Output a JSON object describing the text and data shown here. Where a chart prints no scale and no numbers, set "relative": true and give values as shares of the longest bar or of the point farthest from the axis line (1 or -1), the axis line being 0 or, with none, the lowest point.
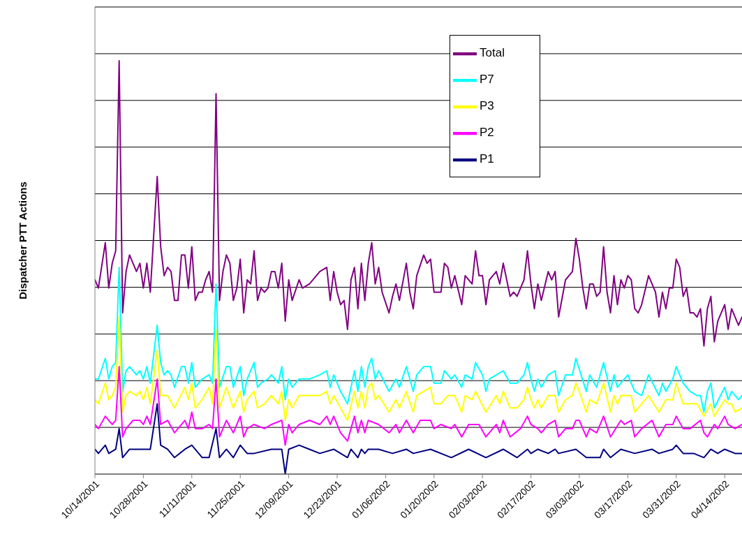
{
  "chart_data": {
    "type": "line",
    "ylabel": "Dispatcher PTT Actions",
    "relative": true,
    "grid": "y",
    "legend": "top right",
    "marker": "none",
    "line_style": "solid",
    "xlim": [
      "2001-10-14",
      "2002-04-19"
    ],
    "xticks": [
      {
        "value": "2001-10-14",
        "label": "10/14/2001"
      },
      {
        "value": "2001-10-28",
        "label": "10/28/2001"
      },
      {
        "value": "2001-11-11",
        "label": "11/11/2001"
      },
      {
        "value": "2001-11-25",
        "label": "11/25/2001"
      },
      {
        "value": "2001-12-09",
        "label": "12/09/2001"
      },
      {
        "value": "2001-12-23",
        "label": "12/23/2001"
      },
      {
        "value": "2002-01-06",
        "label": "01/06/2002"
      },
      {
        "value": "2002-01-20",
        "label": "01/20/2002"
      },
      {
        "value": "2002-02-03",
        "label": "02/03/2002"
      },
      {
        "value": "2002-02-17",
        "label": "02/17/2002"
      },
      {
        "value": "2002-03-03",
        "label": "03/03/2002"
      },
      {
        "value": "2002-03-17",
        "label": "03/17/2002"
      },
      {
        "value": "2002-03-31",
        "label": "03/31/2002"
      },
      {
        "value": "2002-04-14",
        "label": "04/14/2002"
      }
    ],
    "series": [
      {
        "name": "Total",
        "color": "#800080",
        "x": [
          "2001-10-14",
          "2001-10-15",
          "2001-10-17",
          "2001-10-18",
          "2001-10-19",
          "2001-10-20",
          "2001-10-21",
          "2001-10-22",
          "2001-10-23",
          "2001-10-24",
          "2001-10-26",
          "2001-10-27",
          "2001-10-28",
          "2001-10-29",
          "2001-10-30",
          "2001-11-01",
          "2001-11-02",
          "2001-11-03",
          "2001-11-04",
          "2001-11-05",
          "2001-11-06",
          "2001-11-07",
          "2001-11-08",
          "2001-11-09",
          "2001-11-10",
          "2001-11-11",
          "2001-11-12",
          "2001-11-13",
          "2001-11-14",
          "2001-11-15",
          "2001-11-16",
          "2001-11-17",
          "2001-11-18",
          "2001-11-19",
          "2001-11-20",
          "2001-11-21",
          "2001-11-22",
          "2001-11-23",
          "2001-11-24",
          "2001-11-25",
          "2001-11-26",
          "2001-11-27",
          "2001-11-28",
          "2001-11-29",
          "2001-11-30",
          "2001-12-01",
          "2001-12-02",
          "2001-12-03",
          "2001-12-04",
          "2001-12-05",
          "2001-12-06",
          "2001-12-07",
          "2001-12-08",
          "2001-12-09",
          "2001-12-10",
          "2001-12-12",
          "2001-12-13",
          "2001-12-15",
          "2001-12-18",
          "2001-12-20",
          "2001-12-21",
          "2001-12-22",
          "2001-12-23",
          "2001-12-24",
          "2001-12-25",
          "2001-12-26",
          "2001-12-27",
          "2001-12-28",
          "2001-12-29",
          "2001-12-30",
          "2001-12-31",
          "2002-01-01",
          "2002-01-02",
          "2002-01-03",
          "2002-01-04",
          "2002-01-05",
          "2002-01-07",
          "2002-01-08",
          "2002-01-09",
          "2002-01-10",
          "2002-01-12",
          "2002-01-13",
          "2002-01-14",
          "2002-01-15",
          "2002-01-17",
          "2002-01-18",
          "2002-01-19",
          "2002-01-20",
          "2002-01-21",
          "2002-01-22",
          "2002-01-23",
          "2002-01-24",
          "2002-01-25",
          "2002-01-26",
          "2002-01-28",
          "2002-01-29",
          "2002-01-31",
          "2002-02-01",
          "2002-02-02",
          "2002-02-03",
          "2002-02-04",
          "2002-02-05",
          "2002-02-07",
          "2002-02-08",
          "2002-02-09",
          "2002-02-11",
          "2002-02-12",
          "2002-02-13",
          "2002-02-14",
          "2002-02-15",
          "2002-02-16",
          "2002-02-17",
          "2002-02-18",
          "2002-02-19",
          "2002-02-20",
          "2002-02-22",
          "2002-02-23",
          "2002-02-24",
          "2002-02-25",
          "2002-02-27",
          "2002-03-01",
          "2002-03-02",
          "2002-03-03",
          "2002-03-04",
          "2002-03-05",
          "2002-03-06",
          "2002-03-07",
          "2002-03-08",
          "2002-03-09",
          "2002-03-10",
          "2002-03-11",
          "2002-03-12",
          "2002-03-13",
          "2002-03-14",
          "2002-03-15",
          "2002-03-16",
          "2002-03-17",
          "2002-03-18",
          "2002-03-19",
          "2002-03-20",
          "2002-03-21",
          "2002-03-23",
          "2002-03-24",
          "2002-03-25",
          "2002-03-26",
          "2002-03-27",
          "2002-03-28",
          "2002-03-29",
          "2002-03-30",
          "2002-03-31",
          "2002-04-01",
          "2002-04-02",
          "2002-04-03",
          "2002-04-04",
          "2002-04-05",
          "2002-04-06",
          "2002-04-07",
          "2002-04-08",
          "2002-04-09",
          "2002-04-10",
          "2002-04-11",
          "2002-04-12",
          "2002-04-14",
          "2002-04-15",
          "2002-04-16",
          "2002-04-17",
          "2002-04-18",
          "2002-04-19"
        ],
        "values": [
          0.47,
          0.45,
          0.56,
          0.45,
          0.51,
          0.54,
          1,
          0.39,
          0.49,
          0.53,
          0.49,
          0.51,
          0.45,
          0.51,
          0.44,
          0.72,
          0.55,
          0.48,
          0.5,
          0.49,
          0.42,
          0.42,
          0.53,
          0.53,
          0.45,
          0.55,
          0.42,
          0.44,
          0.44,
          0.47,
          0.49,
          0.44,
          0.92,
          0.42,
          0.49,
          0.53,
          0.51,
          0.42,
          0.45,
          0.52,
          0.39,
          0.47,
          0.46,
          0.54,
          0.42,
          0.45,
          0.44,
          0.45,
          0.49,
          0.49,
          0.45,
          0.51,
          0.37,
          0.47,
          0.42,
          0.47,
          0.45,
          0.46,
          0.49,
          0.5,
          0.42,
          0.49,
          0.44,
          0.41,
          0.42,
          0.35,
          0.47,
          0.5,
          0.4,
          0.51,
          0.42,
          0.51,
          0.56,
          0.46,
          0.5,
          0.44,
          0.39,
          0.43,
          0.46,
          0.42,
          0.51,
          0.44,
          0.4,
          0.48,
          0.53,
          0.51,
          0.52,
          0.44,
          0.44,
          0.44,
          0.51,
          0.5,
          0.45,
          0.48,
          0.41,
          0.48,
          0.46,
          0.54,
          0.48,
          0.48,
          0.41,
          0.47,
          0.49,
          0.46,
          0.51,
          0.43,
          0.44,
          0.43,
          0.45,
          0.47,
          0.54,
          0.46,
          0.4,
          0.46,
          0.42,
          0.49,
          0.47,
          0.49,
          0.38,
          0.47,
          0.49,
          0.57,
          0.52,
          0.45,
          0.4,
          0.46,
          0.46,
          0.43,
          0.44,
          0.55,
          0.44,
          0.39,
          0.48,
          0.41,
          0.47,
          0.45,
          0.48,
          0.47,
          0.4,
          0.39,
          0.41,
          0.48,
          0.46,
          0.44,
          0.38,
          0.44,
          0.4,
          0.45,
          0.45,
          0.52,
          0.5,
          0.43,
          0.45,
          0.39,
          0.39,
          0.38,
          0.4,
          0.31,
          0.4,
          0.43,
          0.32,
          0.37,
          0.41,
          0.35,
          0.4,
          0.38,
          0.36,
          0.38
        ]
      },
      {
        "name": "P7",
        "color": "#00ffff",
        "x": [
          "2001-10-14",
          "2001-10-15",
          "2001-10-17",
          "2001-10-18",
          "2001-10-19",
          "2001-10-20",
          "2001-10-21",
          "2001-10-22",
          "2001-10-23",
          "2001-10-24",
          "2001-10-26",
          "2001-10-27",
          "2001-10-28",
          "2001-10-29",
          "2001-10-30",
          "2001-11-01",
          "2001-11-02",
          "2001-11-03",
          "2001-11-04",
          "2001-11-05",
          "2001-11-06",
          "2001-11-08",
          "2001-11-09",
          "2001-11-10",
          "2001-11-11",
          "2001-11-12",
          "2001-11-14",
          "2001-11-16",
          "2001-11-17",
          "2001-11-18",
          "2001-11-19",
          "2001-11-21",
          "2001-11-22",
          "2001-11-23",
          "2001-11-25",
          "2001-11-26",
          "2001-11-27",
          "2001-11-29",
          "2001-11-30",
          "2001-12-01",
          "2001-12-03",
          "2001-12-04",
          "2001-12-06",
          "2001-12-07",
          "2001-12-08",
          "2001-12-09",
          "2001-12-10",
          "2001-12-12",
          "2001-12-15",
          "2001-12-18",
          "2001-12-20",
          "2001-12-21",
          "2001-12-22",
          "2001-12-24",
          "2001-12-26",
          "2001-12-28",
          "2001-12-29",
          "2001-12-30",
          "2001-12-31",
          "2002-01-01",
          "2002-01-02",
          "2002-01-03",
          "2002-01-04",
          "2002-01-07",
          "2002-01-09",
          "2002-01-10",
          "2002-01-12",
          "2002-01-14",
          "2002-01-15",
          "2002-01-17",
          "2002-01-19",
          "2002-01-20",
          "2002-01-22",
          "2002-01-23",
          "2002-01-25",
          "2002-01-26",
          "2002-01-28",
          "2002-01-29",
          "2002-01-31",
          "2002-02-01",
          "2002-02-03",
          "2002-02-04",
          "2002-02-05",
          "2002-02-07",
          "2002-02-09",
          "2002-02-11",
          "2002-02-13",
          "2002-02-15",
          "2002-02-16",
          "2002-02-17",
          "2002-02-18",
          "2002-02-19",
          "2002-02-20",
          "2002-02-22",
          "2002-02-24",
          "2002-02-25",
          "2002-02-27",
          "2002-03-01",
          "2002-03-02",
          "2002-03-05",
          "2002-03-06",
          "2002-03-08",
          "2002-03-10",
          "2002-03-12",
          "2002-03-13",
          "2002-03-14",
          "2002-03-17",
          "2002-03-19",
          "2002-03-21",
          "2002-03-23",
          "2002-03-26",
          "2002-03-27",
          "2002-03-28",
          "2002-03-30",
          "2002-03-31",
          "2002-04-02",
          "2002-04-04",
          "2002-04-06",
          "2002-04-07",
          "2002-04-08",
          "2002-04-09",
          "2002-04-10",
          "2002-04-11",
          "2002-04-14",
          "2002-04-15",
          "2002-04-16",
          "2002-04-18",
          "2002-04-19"
        ],
        "values": [
          0.23,
          0.23,
          0.28,
          0.23,
          0.26,
          0.27,
          0.5,
          0.2,
          0.25,
          0.26,
          0.24,
          0.25,
          0.23,
          0.26,
          0.22,
          0.36,
          0.27,
          0.24,
          0.25,
          0.24,
          0.21,
          0.26,
          0.26,
          0.22,
          0.27,
          0.21,
          0.23,
          0.24,
          0.22,
          0.46,
          0.21,
          0.26,
          0.26,
          0.21,
          0.26,
          0.19,
          0.23,
          0.27,
          0.21,
          0.22,
          0.23,
          0.24,
          0.22,
          0.26,
          0.18,
          0.23,
          0.21,
          0.23,
          0.23,
          0.24,
          0.25,
          0.21,
          0.24,
          0.2,
          0.17,
          0.25,
          0.2,
          0.26,
          0.21,
          0.26,
          0.28,
          0.23,
          0.25,
          0.2,
          0.23,
          0.21,
          0.26,
          0.2,
          0.24,
          0.26,
          0.26,
          0.22,
          0.22,
          0.25,
          0.23,
          0.24,
          0.21,
          0.24,
          0.23,
          0.27,
          0.24,
          0.2,
          0.23,
          0.24,
          0.25,
          0.22,
          0.22,
          0.24,
          0.27,
          0.23,
          0.2,
          0.23,
          0.21,
          0.24,
          0.25,
          0.19,
          0.24,
          0.24,
          0.28,
          0.2,
          0.24,
          0.21,
          0.27,
          0.2,
          0.24,
          0.21,
          0.24,
          0.2,
          0.19,
          0.24,
          0.19,
          0.22,
          0.2,
          0.23,
          0.26,
          0.22,
          0.2,
          0.19,
          0.19,
          0.15,
          0.2,
          0.22,
          0.16,
          0.21,
          0.18,
          0.2,
          0.18,
          0.19
        ]
      },
      {
        "name": "P3",
        "color": "#ffff00",
        "x": [
          "2001-10-14",
          "2001-10-15",
          "2001-10-17",
          "2001-10-18",
          "2001-10-19",
          "2001-10-20",
          "2001-10-21",
          "2001-10-22",
          "2001-10-23",
          "2001-10-24",
          "2001-10-26",
          "2001-10-27",
          "2001-10-28",
          "2001-10-29",
          "2001-10-30",
          "2001-11-01",
          "2001-11-02",
          "2001-11-04",
          "2001-11-06",
          "2001-11-09",
          "2001-11-10",
          "2001-11-11",
          "2001-11-12",
          "2001-11-14",
          "2001-11-16",
          "2001-11-17",
          "2001-11-18",
          "2001-11-19",
          "2001-11-21",
          "2001-11-23",
          "2001-11-25",
          "2001-11-26",
          "2001-11-27",
          "2001-11-29",
          "2001-11-30",
          "2001-12-02",
          "2001-12-04",
          "2001-12-06",
          "2001-12-07",
          "2001-12-08",
          "2001-12-09",
          "2001-12-10",
          "2001-12-12",
          "2001-12-15",
          "2001-12-18",
          "2001-12-20",
          "2001-12-21",
          "2001-12-22",
          "2001-12-24",
          "2001-12-26",
          "2001-12-28",
          "2001-12-29",
          "2001-12-30",
          "2001-12-31",
          "2002-01-01",
          "2002-01-02",
          "2002-01-03",
          "2002-01-04",
          "2002-01-07",
          "2002-01-09",
          "2002-01-10",
          "2002-01-12",
          "2002-01-14",
          "2002-01-15",
          "2002-01-17",
          "2002-01-19",
          "2002-01-20",
          "2002-01-22",
          "2002-01-24",
          "2002-01-26",
          "2002-01-28",
          "2002-01-29",
          "2002-01-31",
          "2002-02-01",
          "2002-02-04",
          "2002-02-07",
          "2002-02-08",
          "2002-02-09",
          "2002-02-11",
          "2002-02-13",
          "2002-02-15",
          "2002-02-16",
          "2002-02-17",
          "2002-02-18",
          "2002-02-19",
          "2002-02-20",
          "2002-02-22",
          "2002-02-24",
          "2002-02-25",
          "2002-02-27",
          "2002-03-01",
          "2002-03-02",
          "2002-03-03",
          "2002-03-05",
          "2002-03-06",
          "2002-03-08",
          "2002-03-10",
          "2002-03-12",
          "2002-03-13",
          "2002-03-14",
          "2002-03-15",
          "2002-03-18",
          "2002-03-19",
          "2002-03-21",
          "2002-03-23",
          "2002-03-26",
          "2002-03-28",
          "2002-03-30",
          "2002-03-31",
          "2002-04-02",
          "2002-04-04",
          "2002-04-06",
          "2002-04-08",
          "2002-04-10",
          "2002-04-11",
          "2002-04-14",
          "2002-04-15",
          "2002-04-16",
          "2002-04-17",
          "2002-04-19"
        ],
        "values": [
          0.18,
          0.17,
          0.22,
          0.18,
          0.19,
          0.21,
          0.38,
          0.15,
          0.19,
          0.2,
          0.19,
          0.2,
          0.18,
          0.21,
          0.17,
          0.3,
          0.19,
          0.19,
          0.16,
          0.21,
          0.18,
          0.22,
          0.16,
          0.18,
          0.21,
          0.17,
          0.35,
          0.16,
          0.21,
          0.16,
          0.2,
          0.15,
          0.18,
          0.2,
          0.16,
          0.17,
          0.19,
          0.17,
          0.2,
          0.13,
          0.18,
          0.16,
          0.19,
          0.19,
          0.19,
          0.2,
          0.17,
          0.19,
          0.16,
          0.13,
          0.2,
          0.16,
          0.2,
          0.16,
          0.21,
          0.22,
          0.18,
          0.19,
          0.15,
          0.18,
          0.16,
          0.2,
          0.15,
          0.19,
          0.2,
          0.21,
          0.17,
          0.17,
          0.19,
          0.19,
          0.15,
          0.19,
          0.18,
          0.2,
          0.15,
          0.19,
          0.17,
          0.2,
          0.16,
          0.16,
          0.18,
          0.21,
          0.18,
          0.16,
          0.18,
          0.16,
          0.19,
          0.19,
          0.15,
          0.18,
          0.19,
          0.22,
          0.2,
          0.15,
          0.18,
          0.17,
          0.22,
          0.15,
          0.19,
          0.17,
          0.19,
          0.19,
          0.15,
          0.17,
          0.19,
          0.15,
          0.18,
          0.18,
          0.22,
          0.17,
          0.17,
          0.17,
          0.14,
          0.17,
          0.14,
          0.18,
          0.17,
          0.17,
          0.15,
          0.16
        ]
      },
      {
        "name": "P2",
        "color": "#ff00ff",
        "x": [
          "2001-10-14",
          "2001-10-15",
          "2001-10-17",
          "2001-10-18",
          "2001-10-19",
          "2001-10-20",
          "2001-10-21",
          "2001-10-22",
          "2001-10-23",
          "2001-10-25",
          "2001-10-27",
          "2001-10-28",
          "2001-10-29",
          "2001-10-30",
          "2001-11-01",
          "2001-11-02",
          "2001-11-04",
          "2001-11-06",
          "2001-11-09",
          "2001-11-10",
          "2001-11-11",
          "2001-11-12",
          "2001-11-14",
          "2001-11-16",
          "2001-11-17",
          "2001-11-18",
          "2001-11-19",
          "2001-11-21",
          "2001-11-23",
          "2001-11-25",
          "2001-11-26",
          "2001-11-27",
          "2001-11-29",
          "2001-12-02",
          "2001-12-04",
          "2001-12-07",
          "2001-12-08",
          "2001-12-09",
          "2001-12-10",
          "2001-12-12",
          "2001-12-15",
          "2001-12-18",
          "2001-12-20",
          "2001-12-21",
          "2001-12-22",
          "2001-12-24",
          "2001-12-26",
          "2001-12-28",
          "2001-12-29",
          "2001-12-30",
          "2001-12-31",
          "2002-01-01",
          "2002-01-04",
          "2002-01-07",
          "2002-01-09",
          "2002-01-10",
          "2002-01-12",
          "2002-01-14",
          "2002-01-16",
          "2002-01-19",
          "2002-01-20",
          "2002-01-22",
          "2002-01-25",
          "2002-01-26",
          "2002-01-28",
          "2002-01-30",
          "2002-02-02",
          "2002-02-04",
          "2002-02-07",
          "2002-02-08",
          "2002-02-09",
          "2002-02-11",
          "2002-02-14",
          "2002-02-16",
          "2002-02-17",
          "2002-02-19",
          "2002-02-20",
          "2002-02-22",
          "2002-02-24",
          "2002-02-25",
          "2002-02-27",
          "2002-03-01",
          "2002-03-02",
          "2002-03-03",
          "2002-03-05",
          "2002-03-06",
          "2002-03-08",
          "2002-03-10",
          "2002-03-12",
          "2002-03-15",
          "2002-03-16",
          "2002-03-18",
          "2002-03-19",
          "2002-03-21",
          "2002-03-24",
          "2002-03-26",
          "2002-03-28",
          "2002-03-30",
          "2002-03-31",
          "2002-04-02",
          "2002-04-04",
          "2002-04-07",
          "2002-04-08",
          "2002-04-09",
          "2002-04-11",
          "2002-04-12",
          "2002-04-14",
          "2002-04-15",
          "2002-04-17",
          "2002-04-19"
        ],
        "values": [
          0.12,
          0.11,
          0.14,
          0.13,
          0.12,
          0.13,
          0.26,
          0.09,
          0.11,
          0.13,
          0.13,
          0.12,
          0.14,
          0.12,
          0.23,
          0.12,
          0.13,
          0.1,
          0.13,
          0.11,
          0.15,
          0.11,
          0.11,
          0.12,
          0.11,
          0.23,
          0.09,
          0.13,
          0.1,
          0.14,
          0.09,
          0.11,
          0.12,
          0.11,
          0.12,
          0.13,
          0.07,
          0.12,
          0.1,
          0.12,
          0.13,
          0.12,
          0.14,
          0.12,
          0.14,
          0.1,
          0.08,
          0.14,
          0.1,
          0.13,
          0.1,
          0.13,
          0.12,
          0.1,
          0.12,
          0.1,
          0.13,
          0.1,
          0.13,
          0.13,
          0.11,
          0.12,
          0.11,
          0.12,
          0.09,
          0.12,
          0.12,
          0.09,
          0.12,
          0.1,
          0.13,
          0.09,
          0.11,
          0.14,
          0.12,
          0.11,
          0.1,
          0.12,
          0.13,
          0.09,
          0.11,
          0.11,
          0.13,
          0.13,
          0.09,
          0.11,
          0.1,
          0.14,
          0.09,
          0.13,
          0.12,
          0.13,
          0.09,
          0.11,
          0.13,
          0.09,
          0.12,
          0.12,
          0.14,
          0.11,
          0.11,
          0.13,
          0.1,
          0.09,
          0.12,
          0.11,
          0.14,
          0.12,
          0.11,
          0.12
        ]
      },
      {
        "name": "P1",
        "color": "#000080",
        "x": [
          "2001-10-14",
          "2001-10-15",
          "2001-10-17",
          "2001-10-18",
          "2001-10-20",
          "2001-10-21",
          "2001-10-22",
          "2001-10-24",
          "2001-10-27",
          "2001-10-30",
          "2001-11-01",
          "2001-11-02",
          "2001-11-04",
          "2001-11-06",
          "2001-11-09",
          "2001-11-11",
          "2001-11-14",
          "2001-11-16",
          "2001-11-18",
          "2001-11-19",
          "2001-11-21",
          "2001-11-23",
          "2001-11-25",
          "2001-11-27",
          "2001-11-29",
          "2001-12-04",
          "2001-12-07",
          "2001-12-08",
          "2001-12-09",
          "2001-12-12",
          "2001-12-15",
          "2001-12-18",
          "2001-12-22",
          "2001-12-24",
          "2001-12-26",
          "2001-12-27",
          "2001-12-29",
          "2001-12-30",
          "2001-12-31",
          "2002-01-01",
          "2002-01-04",
          "2002-01-08",
          "2002-01-12",
          "2002-01-14",
          "2002-01-19",
          "2002-01-25",
          "2002-01-30",
          "2002-02-04",
          "2002-02-09",
          "2002-02-13",
          "2002-02-16",
          "2002-02-17",
          "2002-02-19",
          "2002-02-22",
          "2002-02-24",
          "2002-02-25",
          "2002-03-02",
          "2002-03-05",
          "2002-03-09",
          "2002-03-10",
          "2002-03-12",
          "2002-03-15",
          "2002-03-19",
          "2002-03-24",
          "2002-03-26",
          "2002-03-30",
          "2002-03-31",
          "2002-04-02",
          "2002-04-05",
          "2002-04-08",
          "2002-04-10",
          "2002-04-12",
          "2002-04-14",
          "2002-04-17",
          "2002-04-19"
        ],
        "values": [
          0.06,
          0.05,
          0.07,
          0.05,
          0.06,
          0.11,
          0.04,
          0.06,
          0.06,
          0.06,
          0.17,
          0.07,
          0.06,
          0.04,
          0.06,
          0.07,
          0.04,
          0.04,
          0.11,
          0.04,
          0.06,
          0.04,
          0.07,
          0.05,
          0.05,
          0.06,
          0.06,
          0,
          0.06,
          0.07,
          0.06,
          0.05,
          0.06,
          0.05,
          0.04,
          0.06,
          0.04,
          0.06,
          0.05,
          0.06,
          0.06,
          0.05,
          0.06,
          0.05,
          0.06,
          0.04,
          0.06,
          0.04,
          0.06,
          0.04,
          0.06,
          0.05,
          0.06,
          0.05,
          0.06,
          0.05,
          0.06,
          0.04,
          0.04,
          0.06,
          0.04,
          0.06,
          0.05,
          0.06,
          0.05,
          0.06,
          0.07,
          0.05,
          0.05,
          0.04,
          0.06,
          0.05,
          0.06,
          0.05,
          0.05
        ]
      }
    ]
  }
}
